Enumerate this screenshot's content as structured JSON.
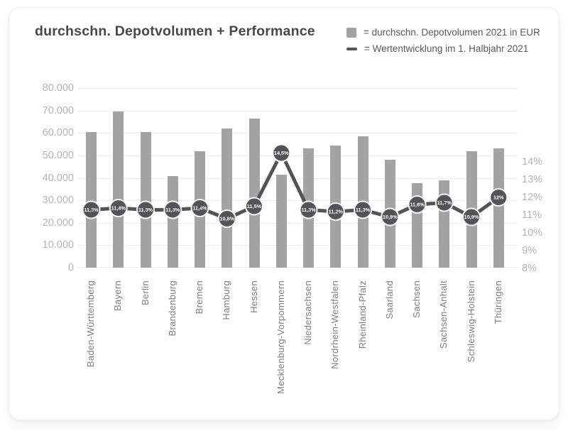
{
  "card_title": "durchschn. Depotvolumen + Performance",
  "colors": {
    "bar": "#a3a3a3",
    "line": "#545456",
    "grid": "#ededed",
    "axis_text": "#b4b4b4",
    "xlabel_text": "#7d7d7d",
    "title_text": "#47484a",
    "legend_text": "#58585a",
    "dot_label": "#ffffff",
    "dot_ring": "#f5f5f5",
    "card_bg": "#ffffff"
  },
  "chart_data": {
    "type": "combo",
    "title": "durchschn. Depotvolumen + Performance",
    "grid": true,
    "legend_position": "top-right",
    "legend": [
      {
        "swatch": "square",
        "label": "= durchschn. Depotvolumen 2021 in EUR"
      },
      {
        "swatch": "dash",
        "label": "= Wertentwicklung im 1. Halbjahr 2021"
      }
    ],
    "categories": [
      "Baden-Württemberg",
      "Bayern",
      "Berlin",
      "Brandenburg",
      "Bremen",
      "Hamburg",
      "Hessen",
      "Mecklenburg-Vorpommern",
      "Niedersachsen",
      "Nordrhein-Westfalen",
      "Rheinland-Pfalz",
      "Saarland",
      "Sachsen",
      "Sachsen-Anhalt",
      "Schleswig-Holstein",
      "Thüringen"
    ],
    "series": [
      {
        "name": "durchschn. Depotvolumen 2021 in EUR",
        "type": "bar",
        "axis": "left",
        "color": "#a3a3a3",
        "values": [
          60500,
          69500,
          60300,
          40800,
          52000,
          62000,
          66500,
          41500,
          53000,
          54300,
          58600,
          48000,
          37500,
          39000,
          52000,
          53000
        ]
      },
      {
        "name": "Wertentwicklung im 1. Halbjahr 2021",
        "type": "line",
        "axis": "right",
        "color": "#545456",
        "values": [
          11.3,
          11.4,
          11.3,
          11.3,
          11.4,
          10.8,
          11.5,
          14.5,
          11.3,
          11.2,
          11.3,
          10.9,
          11.6,
          11.7,
          10.9,
          12.0
        ],
        "point_labels": [
          "11,3%",
          "11,4%",
          "11,3%",
          "11,3%",
          "11,4%",
          "10,8%",
          "11,5%",
          "14,5%",
          "11,3%",
          "11,2%",
          "11,3%",
          "10,9%",
          "11,6%",
          "11,7%",
          "10,9%",
          "12%"
        ]
      }
    ],
    "left_axis": {
      "min": 0,
      "max": 80000,
      "ticks": [
        {
          "label": "80.000",
          "value": 80000
        },
        {
          "label": "70.000",
          "value": 70000
        },
        {
          "label": "60.000",
          "value": 60000
        },
        {
          "label": "50.000",
          "value": 50000
        },
        {
          "label": "40.000",
          "value": 40000
        },
        {
          "label": "30.000",
          "value": 30000
        },
        {
          "label": "20.000",
          "value": 20000
        },
        {
          "label": "10.000",
          "value": 10000
        },
        {
          "label": "0",
          "value": 0
        }
      ]
    },
    "right_axis": {
      "min": 8,
      "max": 14,
      "ticks": [
        {
          "label": "14%",
          "value": 14
        },
        {
          "label": "13%",
          "value": 13
        },
        {
          "label": "12%",
          "value": 12
        },
        {
          "label": "11%",
          "value": 11
        },
        {
          "label": "10%",
          "value": 10
        },
        {
          "label": "9%",
          "value": 9
        },
        {
          "label": "8%",
          "value": 8
        }
      ]
    }
  }
}
